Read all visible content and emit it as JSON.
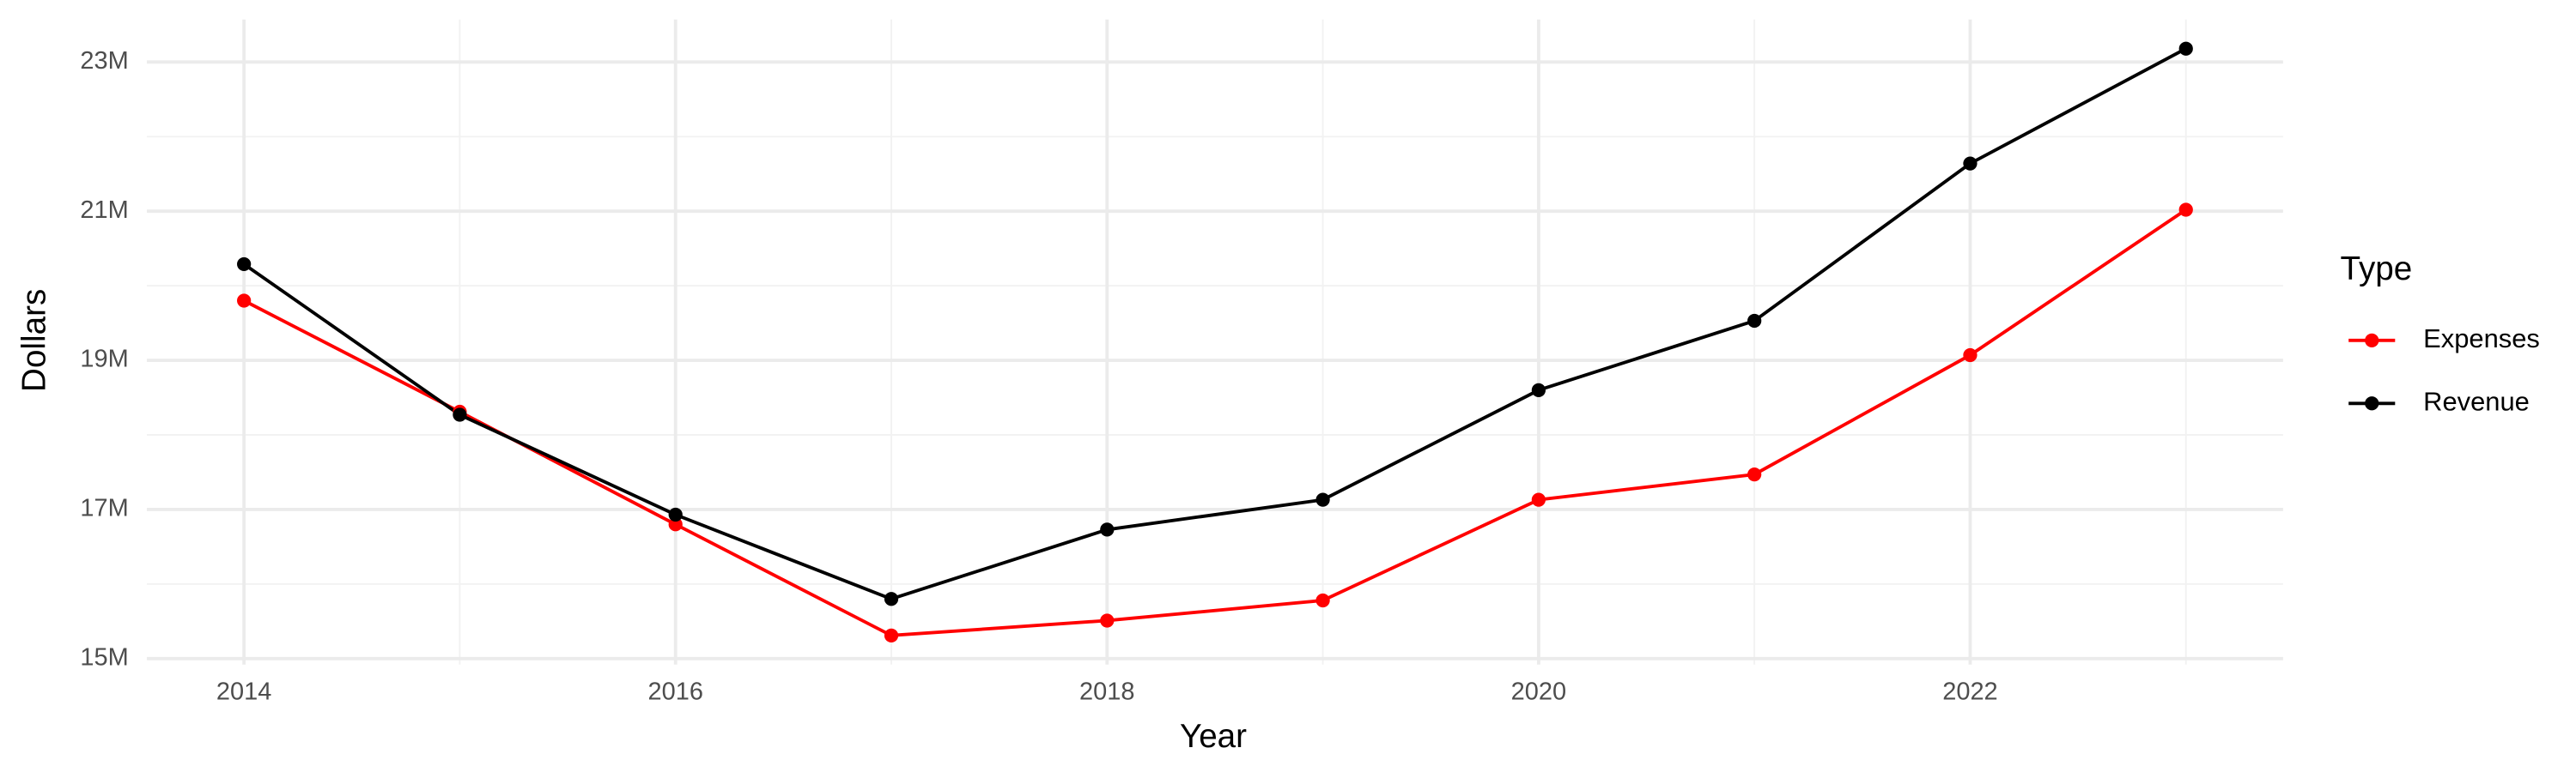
{
  "chart_data": {
    "type": "line",
    "x_label": "Year",
    "y_label": "Dollars",
    "legend_title": "Type",
    "legend_position": "right",
    "x": [
      2014,
      2015,
      2016,
      2017,
      2018,
      2019,
      2020,
      2021,
      2022,
      2023
    ],
    "series": [
      {
        "name": "Expenses",
        "color": "#ff0000",
        "values": [
          19800000,
          18310000,
          16800000,
          15310000,
          15510000,
          15780000,
          17130000,
          17470000,
          19070000,
          21020000
        ]
      },
      {
        "name": "Revenue",
        "color": "#000000",
        "values": [
          20290000,
          18270000,
          16930000,
          15800000,
          16730000,
          17130000,
          18600000,
          19530000,
          21640000,
          23180000
        ]
      }
    ],
    "xlim": [
      2013.55,
      2023.45
    ],
    "xticks": [
      2014,
      2016,
      2018,
      2020,
      2022
    ],
    "x_minor_ticks": [
      2015,
      2017,
      2019,
      2021,
      2023
    ],
    "ylim": [
      14920000,
      23570000
    ],
    "yticks": [
      {
        "value": 15000000,
        "label": "15M"
      },
      {
        "value": 17000000,
        "label": "17M"
      },
      {
        "value": 19000000,
        "label": "19M"
      },
      {
        "value": 21000000,
        "label": "21M"
      },
      {
        "value": 23000000,
        "label": "23M"
      }
    ],
    "y_minor_ticks": [
      16000000,
      18000000,
      20000000,
      22000000
    ],
    "grid": true
  }
}
